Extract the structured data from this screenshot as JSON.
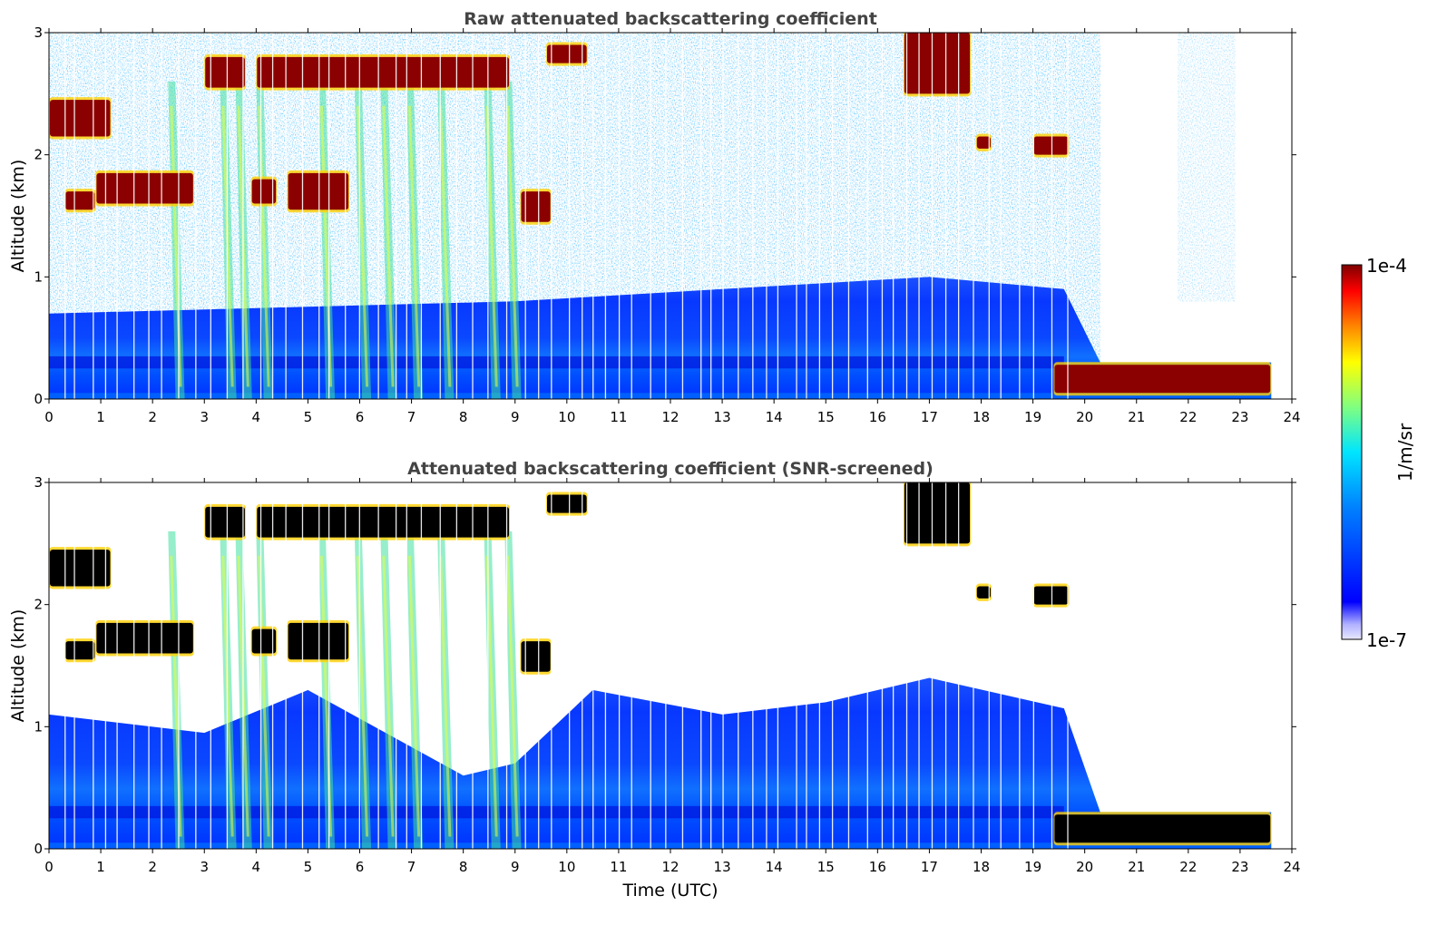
{
  "colors": {
    "jet": [
      "#00007f",
      "#0000ff",
      "#007fff",
      "#00ffff",
      "#7fff7f",
      "#ffff00",
      "#ff7f00",
      "#ff0000",
      "#7f0000"
    ],
    "screened_cloud": "#000000",
    "background": "#ffffff"
  },
  "colorbar": {
    "label": "1/m/sr",
    "max_label": "1e-4",
    "min_label": "1e-7",
    "scale": "log",
    "range": [
      1e-07,
      0.0001
    ]
  },
  "chart_data": [
    {
      "type": "heatmap",
      "title": "Raw attenuated backscattering coefficient",
      "xlabel": "",
      "ylabel": "Altitude (km)",
      "xlim": [
        0,
        24
      ],
      "ylim": [
        0,
        3
      ],
      "xticks": [
        "0",
        "1",
        "2",
        "3",
        "4",
        "5",
        "6",
        "7",
        "8",
        "9",
        "10",
        "11",
        "12",
        "13",
        "14",
        "15",
        "16",
        "17",
        "18",
        "19",
        "20",
        "21",
        "22",
        "23",
        "24"
      ],
      "yticks": [
        "0",
        "1",
        "2",
        "3"
      ],
      "features": {
        "boundary_layer_top_km": [
          [
            0,
            0.7
          ],
          [
            9,
            0.8
          ],
          [
            13,
            0.9
          ],
          [
            17,
            1.0
          ],
          [
            19.6,
            0.9
          ],
          [
            20.3,
            0.3
          ],
          [
            23.6,
            0.3
          ]
        ],
        "aerosol_band_km": [
          0.25,
          0.35
        ],
        "cloud_layers": [
          {
            "t0": 0.0,
            "t1": 1.2,
            "z0": 2.15,
            "z1": 2.45
          },
          {
            "t0": 0.3,
            "t1": 0.9,
            "z0": 1.55,
            "z1": 1.7
          },
          {
            "t0": 0.9,
            "t1": 2.8,
            "z0": 1.6,
            "z1": 1.85
          },
          {
            "t0": 3.9,
            "t1": 4.4,
            "z0": 1.6,
            "z1": 1.8
          },
          {
            "t0": 4.6,
            "t1": 5.8,
            "z0": 1.55,
            "z1": 1.85
          },
          {
            "t0": 3.0,
            "t1": 3.8,
            "z0": 2.55,
            "z1": 2.8
          },
          {
            "t0": 4.0,
            "t1": 8.9,
            "z0": 2.55,
            "z1": 2.8
          },
          {
            "t0": 9.1,
            "t1": 9.7,
            "z0": 1.45,
            "z1": 1.7
          },
          {
            "t0": 9.6,
            "t1": 10.4,
            "z0": 2.75,
            "z1": 2.9
          },
          {
            "t0": 16.5,
            "t1": 17.8,
            "z0": 2.5,
            "z1": 3.0
          },
          {
            "t0": 17.9,
            "t1": 18.2,
            "z0": 2.05,
            "z1": 2.15
          },
          {
            "t0": 19.0,
            "t1": 19.7,
            "z0": 2.0,
            "z1": 2.15
          },
          {
            "t0": 19.4,
            "t1": 23.6,
            "z0": 0.05,
            "z1": 0.28
          }
        ],
        "precipitation_fallstreaks_t": [
          2.3,
          3.3,
          3.6,
          4.0,
          5.2,
          5.9,
          6.4,
          6.9,
          7.5,
          8.4,
          8.8
        ]
      }
    },
    {
      "type": "heatmap",
      "title": "Attenuated backscattering coefficient (SNR-screened)",
      "xlabel": "Time (UTC)",
      "ylabel": "Altitude (km)",
      "xlim": [
        0,
        24
      ],
      "ylim": [
        0,
        3
      ],
      "xticks": [
        "0",
        "1",
        "2",
        "3",
        "4",
        "5",
        "6",
        "7",
        "8",
        "9",
        "10",
        "11",
        "12",
        "13",
        "14",
        "15",
        "16",
        "17",
        "18",
        "19",
        "20",
        "21",
        "22",
        "23",
        "24"
      ],
      "yticks": [
        "0",
        "1",
        "2",
        "3"
      ],
      "features": {
        "screened_top_km": [
          [
            0,
            1.1
          ],
          [
            3,
            0.95
          ],
          [
            5,
            1.3
          ],
          [
            8,
            0.6
          ],
          [
            9,
            0.7
          ],
          [
            10.5,
            1.3
          ],
          [
            13,
            1.1
          ],
          [
            15,
            1.2
          ],
          [
            17,
            1.4
          ],
          [
            19.6,
            1.15
          ],
          [
            20.3,
            0.3
          ],
          [
            23.6,
            0.3
          ]
        ]
      }
    }
  ]
}
